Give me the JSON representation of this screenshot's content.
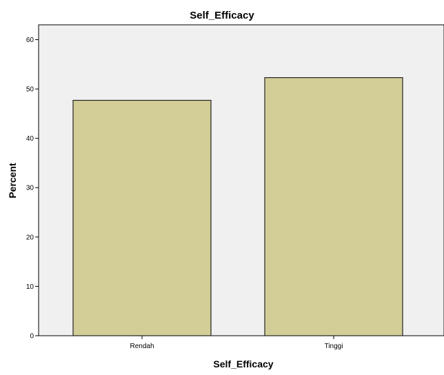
{
  "chart_data": {
    "type": "bar",
    "title": "Self_Efficacy",
    "xlabel": "Self_Efficacy",
    "ylabel": "Percent",
    "categories": [
      "Rendah",
      "Tinggi"
    ],
    "values": [
      47.7,
      52.3
    ],
    "ylim": [
      0,
      63
    ],
    "yticks": [
      0,
      10,
      20,
      30,
      40,
      50,
      60
    ],
    "grid": false,
    "legend": "none",
    "colors": {
      "plot_background": "#f0f0f0",
      "bar_fill": "#d3ce97",
      "bar_stroke": "#222222",
      "axis": "#000000"
    }
  }
}
